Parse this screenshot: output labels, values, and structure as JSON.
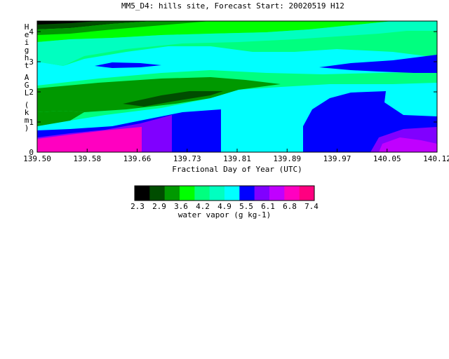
{
  "chart_data": {
    "type": "heatmap",
    "title": "MM5_D4: hills site,  Forecast Start: 20020519 H12",
    "xlabel": "Fractional Day of Year (UTC)",
    "ylabel": "Height AGL (km)",
    "x_ticks": [
      "139.50",
      "139.58",
      "139.66",
      "139.73",
      "139.81",
      "139.89",
      "139.97",
      "140.05",
      "140.12"
    ],
    "y_ticks": [
      "0",
      "1",
      "2",
      "3",
      "4"
    ],
    "xlim": [
      139.5,
      140.12
    ],
    "ylim": [
      0,
      4.35
    ],
    "colorbar": {
      "label": "water vapor (g kg-1)",
      "tick_labels": [
        "2.3",
        "2.9",
        "3.6",
        "4.2",
        "4.9",
        "5.5",
        "6.1",
        "6.8",
        "7.4"
      ],
      "colors": [
        "#000000",
        "#004d00",
        "#009900",
        "#00ff00",
        "#00ff7f",
        "#00ffc0",
        "#00ffff",
        "#0000ff",
        "#8000ff",
        "#c000ff",
        "#ff00c0",
        "#ff0080"
      ]
    },
    "levels": [
      {
        "value": "5.5",
        "color": "#0000ff",
        "desc": "low-level moist layer in first and last thirds"
      },
      {
        "value": "6.1",
        "color": "#8000ff",
        "desc": "near-surface left and right"
      },
      {
        "value": "6.8",
        "color": "#ff00c0",
        "desc": "surface maximum left"
      },
      {
        "value": "4.9",
        "color": "#00ffff",
        "desc": "mid levels 0-3 km"
      },
      {
        "value": "4.2",
        "color": "#00ffc0",
        "desc": "layer near 3 km"
      },
      {
        "value": "3.6",
        "color": "#00ff7f",
        "desc": "upper 3-4 km"
      },
      {
        "value": "2.9",
        "color": "#009900",
        "desc": "dry tongue near 1.5-2 km, left half"
      },
      {
        "value": "2.3",
        "color": "#004d00",
        "desc": "driest core near 1.6 km and top-left"
      }
    ]
  }
}
